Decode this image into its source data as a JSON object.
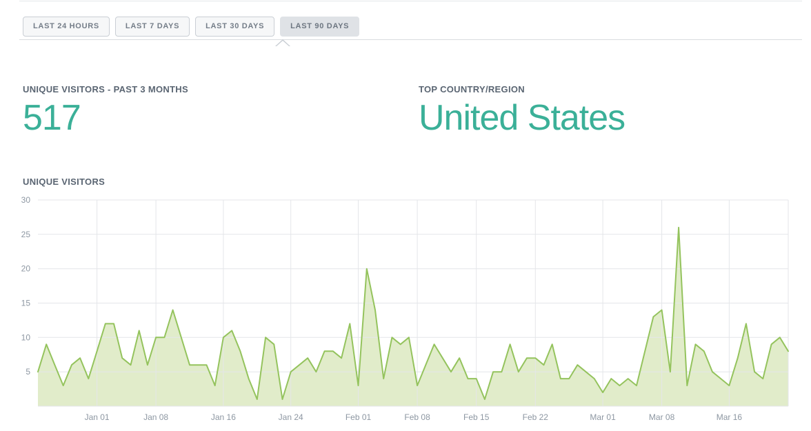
{
  "tabs": {
    "items": [
      {
        "label": "LAST 24 HOURS",
        "selected": false
      },
      {
        "label": "LAST 7 DAYS",
        "selected": false
      },
      {
        "label": "LAST 30 DAYS",
        "selected": false
      },
      {
        "label": "LAST 90 DAYS",
        "selected": true
      }
    ]
  },
  "stats": {
    "visitors": {
      "label": "UNIQUE VISITORS - PAST 3 MONTHS",
      "value": "517"
    },
    "top_country": {
      "label": "TOP COUNTRY/REGION",
      "value": "United States"
    }
  },
  "chart": {
    "title": "UNIQUE VISITORS"
  },
  "chart_data": {
    "type": "area",
    "title": "UNIQUE VISITORS",
    "ylim": [
      0,
      30
    ],
    "grid": true,
    "y_ticks": [
      5,
      10,
      15,
      20,
      25,
      30
    ],
    "x_ticks": [
      {
        "index": 7,
        "label": "Jan 01"
      },
      {
        "index": 14,
        "label": "Jan 08"
      },
      {
        "index": 22,
        "label": "Jan 16"
      },
      {
        "index": 30,
        "label": "Jan 24"
      },
      {
        "index": 38,
        "label": "Feb 01"
      },
      {
        "index": 45,
        "label": "Feb 08"
      },
      {
        "index": 52,
        "label": "Feb 15"
      },
      {
        "index": 59,
        "label": "Feb 22"
      },
      {
        "index": 67,
        "label": "Mar 01"
      },
      {
        "index": 74,
        "label": "Mar 08"
      },
      {
        "index": 82,
        "label": "Mar 16"
      }
    ],
    "values": [
      5,
      9,
      6,
      3,
      6,
      7,
      4,
      8,
      12,
      12,
      7,
      6,
      11,
      6,
      10,
      10,
      14,
      10,
      6,
      6,
      6,
      3,
      10,
      11,
      8,
      4,
      1,
      10,
      9,
      1,
      5,
      6,
      7,
      5,
      8,
      8,
      7,
      12,
      3,
      20,
      14,
      4,
      10,
      9,
      10,
      3,
      6,
      9,
      7,
      5,
      7,
      4,
      4,
      1,
      5,
      5,
      9,
      5,
      7,
      7,
      6,
      9,
      4,
      4,
      6,
      5,
      4,
      2,
      4,
      3,
      4,
      3,
      8,
      13,
      14,
      5,
      26,
      3,
      9,
      8,
      5,
      4,
      3,
      7,
      12,
      5,
      4,
      9,
      10,
      8
    ],
    "line_color": "#94c35d",
    "fill_color": "#e1ecca",
    "grid_color": "#e4e6e9"
  },
  "colors": {
    "accent_teal": "#3bb098",
    "label_grey": "#5a6572",
    "axis_grey": "#8d97a2",
    "tab_selected_bg": "#dfe2e6"
  }
}
